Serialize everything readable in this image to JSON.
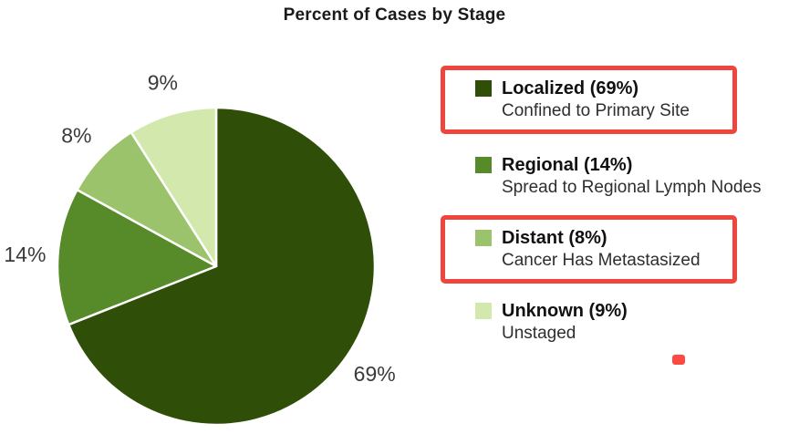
{
  "chart_data": {
    "type": "pie",
    "title": "Percent of Cases by Stage",
    "start_angle_deg": 0,
    "direction": "clockwise",
    "legend_position": "right",
    "slices": [
      {
        "label": "Localized",
        "value": 69,
        "percent_label": "69%",
        "legend_label": "Localized (69%)",
        "description": "Confined to Primary Site",
        "color": "#2f4f08",
        "highlighted": true
      },
      {
        "label": "Regional",
        "value": 14,
        "percent_label": "14%",
        "legend_label": "Regional (14%)",
        "description": "Spread to Regional Lymph Nodes",
        "color": "#578a29",
        "highlighted": false
      },
      {
        "label": "Distant",
        "value": 8,
        "percent_label": "8%",
        "legend_label": "Distant (8%)",
        "description": "Cancer Has Metastasized",
        "color": "#9ac36c",
        "highlighted": true
      },
      {
        "label": "Unknown",
        "value": 9,
        "percent_label": "9%",
        "legend_label": "Unknown (9%)",
        "description": "Unstaged",
        "color": "#d3e8ad",
        "highlighted": false
      }
    ]
  },
  "annotations": {
    "highlighted_items": [
      "Localized",
      "Distant"
    ],
    "highlight_color": "#f0453c",
    "marker_dot_color": "#fa4a42"
  }
}
